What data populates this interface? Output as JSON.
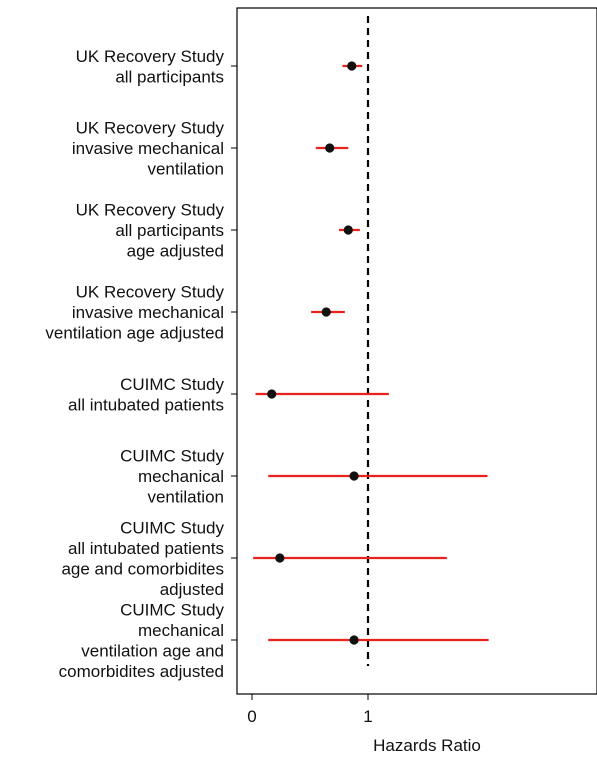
{
  "chart_data": {
    "type": "scatter",
    "subtype": "forest-plot",
    "title": "",
    "xlabel": "Hazards Ratio",
    "ylabel": "",
    "xlim": [
      -0.13,
      2.05
    ],
    "x_ticks": [
      0,
      1
    ],
    "x_tick_labels": [
      "0",
      "1"
    ],
    "reference_line": {
      "x": 1,
      "style": "dashed",
      "color": "#000000"
    },
    "grid": false,
    "legend": "none",
    "colors": {
      "ci": "#e8231e",
      "point": "#111111",
      "axis": "#000000"
    },
    "rows": [
      {
        "label": [
          "UK Recovery Study",
          "all participants"
        ],
        "hr": 0.86,
        "ci_low": 0.78,
        "ci_high": 0.95
      },
      {
        "label": [
          "UK Recovery Study",
          "invasive mechanical",
          "ventilation"
        ],
        "hr": 0.67,
        "ci_low": 0.55,
        "ci_high": 0.83
      },
      {
        "label": [
          "UK Recovery Study",
          "all participants",
          "age adjusted"
        ],
        "hr": 0.83,
        "ci_low": 0.75,
        "ci_high": 0.93
      },
      {
        "label": [
          "UK Recovery Study",
          "invasive mechanical",
          "ventilation age adjusted"
        ],
        "hr": 0.64,
        "ci_low": 0.51,
        "ci_high": 0.8
      },
      {
        "label": [
          "CUIMC Study",
          "all intubated patients"
        ],
        "hr": 0.17,
        "ci_low": 0.03,
        "ci_high": 1.18
      },
      {
        "label": [
          "CUIMC Study",
          "mechanical",
          "ventilation"
        ],
        "hr": 0.88,
        "ci_low": 0.14,
        "ci_high": 2.03
      },
      {
        "label": [
          "CUIMC Study",
          "all intubated patients",
          "age and comorbidites",
          "adjusted"
        ],
        "hr": 0.24,
        "ci_low": 0.01,
        "ci_high": 1.68
      },
      {
        "label": [
          "CUIMC Study",
          "mechanical",
          "ventilation age and",
          "comorbidites adjusted"
        ],
        "hr": 0.88,
        "ci_low": 0.14,
        "ci_high": 2.04
      }
    ]
  }
}
